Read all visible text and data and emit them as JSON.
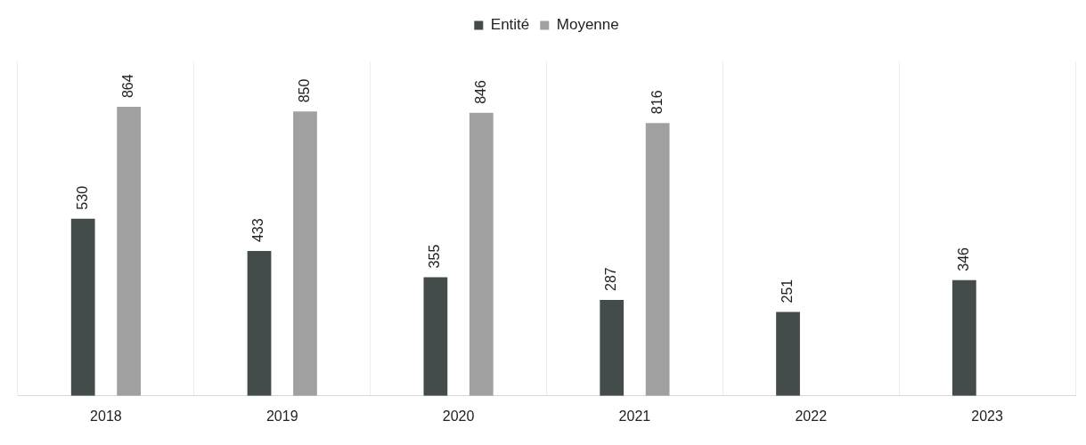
{
  "chart_data": {
    "type": "bar",
    "categories": [
      "2018",
      "2019",
      "2020",
      "2021",
      "2022",
      "2023"
    ],
    "series": [
      {
        "name": "Entité",
        "color": "#434b4b",
        "values": [
          530,
          433,
          355,
          287,
          251,
          346
        ]
      },
      {
        "name": "Moyenne",
        "color": "#a0a0a0",
        "values": [
          864,
          850,
          846,
          816,
          null,
          null
        ]
      }
    ],
    "ylim": [
      0,
      1000
    ],
    "tick_labels": "x",
    "grid": "x",
    "legend": "top",
    "data_labels": true
  }
}
